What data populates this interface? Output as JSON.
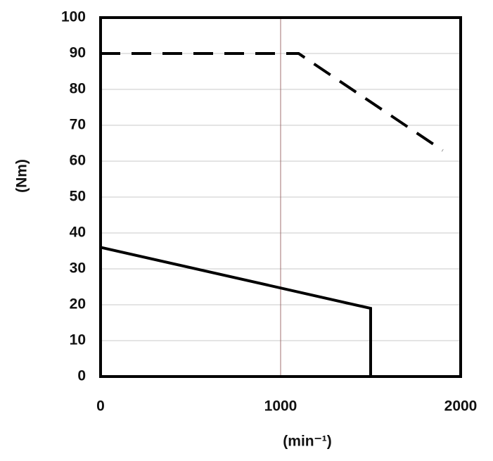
{
  "chart_data": {
    "type": "line",
    "x_label": "(min⁻¹)",
    "y_label": "(Nm)",
    "xlim": [
      0,
      2000
    ],
    "xticks": [
      0,
      1000,
      2000
    ],
    "ylim": [
      0,
      100
    ],
    "yticks": [
      0,
      10,
      20,
      30,
      40,
      50,
      60,
      70,
      80,
      90,
      100
    ],
    "grid": true,
    "series": [
      {
        "color": "#000000",
        "style": "solid",
        "x": [
          0,
          1500,
          1500
        ],
        "values": [
          36,
          19,
          0
        ]
      },
      {
        "color": "#000000",
        "style": "dashed",
        "x": [
          0,
          1100,
          1900
        ],
        "values": [
          90,
          90,
          63
        ]
      }
    ]
  }
}
